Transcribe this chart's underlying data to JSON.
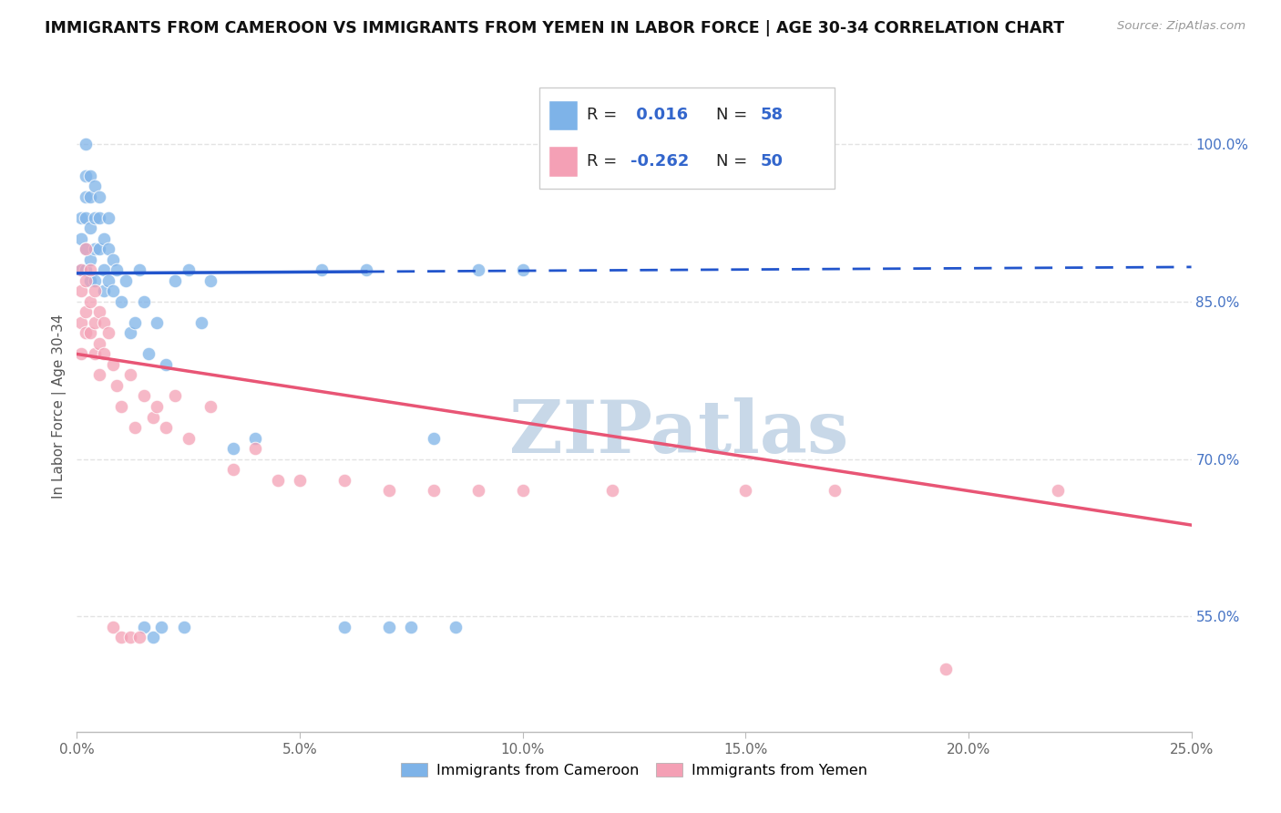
{
  "title": "IMMIGRANTS FROM CAMEROON VS IMMIGRANTS FROM YEMEN IN LABOR FORCE | AGE 30-34 CORRELATION CHART",
  "source": "Source: ZipAtlas.com",
  "ylabel": "In Labor Force | Age 30-34",
  "ytick_labels": [
    "55.0%",
    "70.0%",
    "85.0%",
    "100.0%"
  ],
  "ytick_values": [
    0.55,
    0.7,
    0.85,
    1.0
  ],
  "xlim": [
    0.0,
    0.25
  ],
  "ylim": [
    0.44,
    1.06
  ],
  "legend_r_cameroon": "0.016",
  "legend_n_cameroon": "58",
  "legend_r_yemen": "-0.262",
  "legend_n_yemen": "50",
  "cameroon_color": "#7EB3E8",
  "yemen_color": "#F4A0B5",
  "trendline_cameroon_color": "#2255CC",
  "trendline_yemen_color": "#E85575",
  "watermark_color": "#C8D8E8",
  "background_color": "#FFFFFF",
  "cam_trendline_y0": 0.877,
  "cam_trendline_y1": 0.883,
  "cam_trendline_split_x": 0.065,
  "yem_trendline_y0": 0.8,
  "yem_trendline_y1": 0.637,
  "cameroon_x": [
    0.001,
    0.001,
    0.001,
    0.002,
    0.002,
    0.002,
    0.002,
    0.002,
    0.002,
    0.003,
    0.003,
    0.003,
    0.003,
    0.003,
    0.004,
    0.004,
    0.004,
    0.004,
    0.005,
    0.005,
    0.005,
    0.006,
    0.006,
    0.006,
    0.007,
    0.007,
    0.007,
    0.008,
    0.008,
    0.009,
    0.01,
    0.011,
    0.012,
    0.013,
    0.014,
    0.015,
    0.016,
    0.018,
    0.02,
    0.022,
    0.025,
    0.028,
    0.03,
    0.035,
    0.04,
    0.055,
    0.065,
    0.08,
    0.09,
    0.1,
    0.015,
    0.017,
    0.019,
    0.024,
    0.06,
    0.07,
    0.075,
    0.085
  ],
  "cameroon_y": [
    0.93,
    0.91,
    0.88,
    1.0,
    0.97,
    0.95,
    0.93,
    0.9,
    0.88,
    0.97,
    0.95,
    0.92,
    0.89,
    0.87,
    0.96,
    0.93,
    0.9,
    0.87,
    0.95,
    0.93,
    0.9,
    0.91,
    0.88,
    0.86,
    0.93,
    0.9,
    0.87,
    0.89,
    0.86,
    0.88,
    0.85,
    0.87,
    0.82,
    0.83,
    0.88,
    0.85,
    0.8,
    0.83,
    0.79,
    0.87,
    0.88,
    0.83,
    0.87,
    0.71,
    0.72,
    0.88,
    0.88,
    0.72,
    0.88,
    0.88,
    0.54,
    0.53,
    0.54,
    0.54,
    0.54,
    0.54,
    0.54,
    0.54
  ],
  "yemen_x": [
    0.001,
    0.001,
    0.001,
    0.001,
    0.002,
    0.002,
    0.002,
    0.002,
    0.003,
    0.003,
    0.003,
    0.004,
    0.004,
    0.004,
    0.005,
    0.005,
    0.005,
    0.006,
    0.006,
    0.007,
    0.008,
    0.009,
    0.01,
    0.012,
    0.013,
    0.015,
    0.017,
    0.018,
    0.02,
    0.022,
    0.025,
    0.03,
    0.035,
    0.04,
    0.045,
    0.05,
    0.06,
    0.07,
    0.08,
    0.09,
    0.1,
    0.12,
    0.15,
    0.17,
    0.195,
    0.22,
    0.008,
    0.01,
    0.012,
    0.014
  ],
  "yemen_y": [
    0.88,
    0.86,
    0.83,
    0.8,
    0.9,
    0.87,
    0.84,
    0.82,
    0.88,
    0.85,
    0.82,
    0.86,
    0.83,
    0.8,
    0.84,
    0.81,
    0.78,
    0.83,
    0.8,
    0.82,
    0.79,
    0.77,
    0.75,
    0.78,
    0.73,
    0.76,
    0.74,
    0.75,
    0.73,
    0.76,
    0.72,
    0.75,
    0.69,
    0.71,
    0.68,
    0.68,
    0.68,
    0.67,
    0.67,
    0.67,
    0.67,
    0.67,
    0.67,
    0.67,
    0.5,
    0.67,
    0.54,
    0.53,
    0.53,
    0.53
  ]
}
